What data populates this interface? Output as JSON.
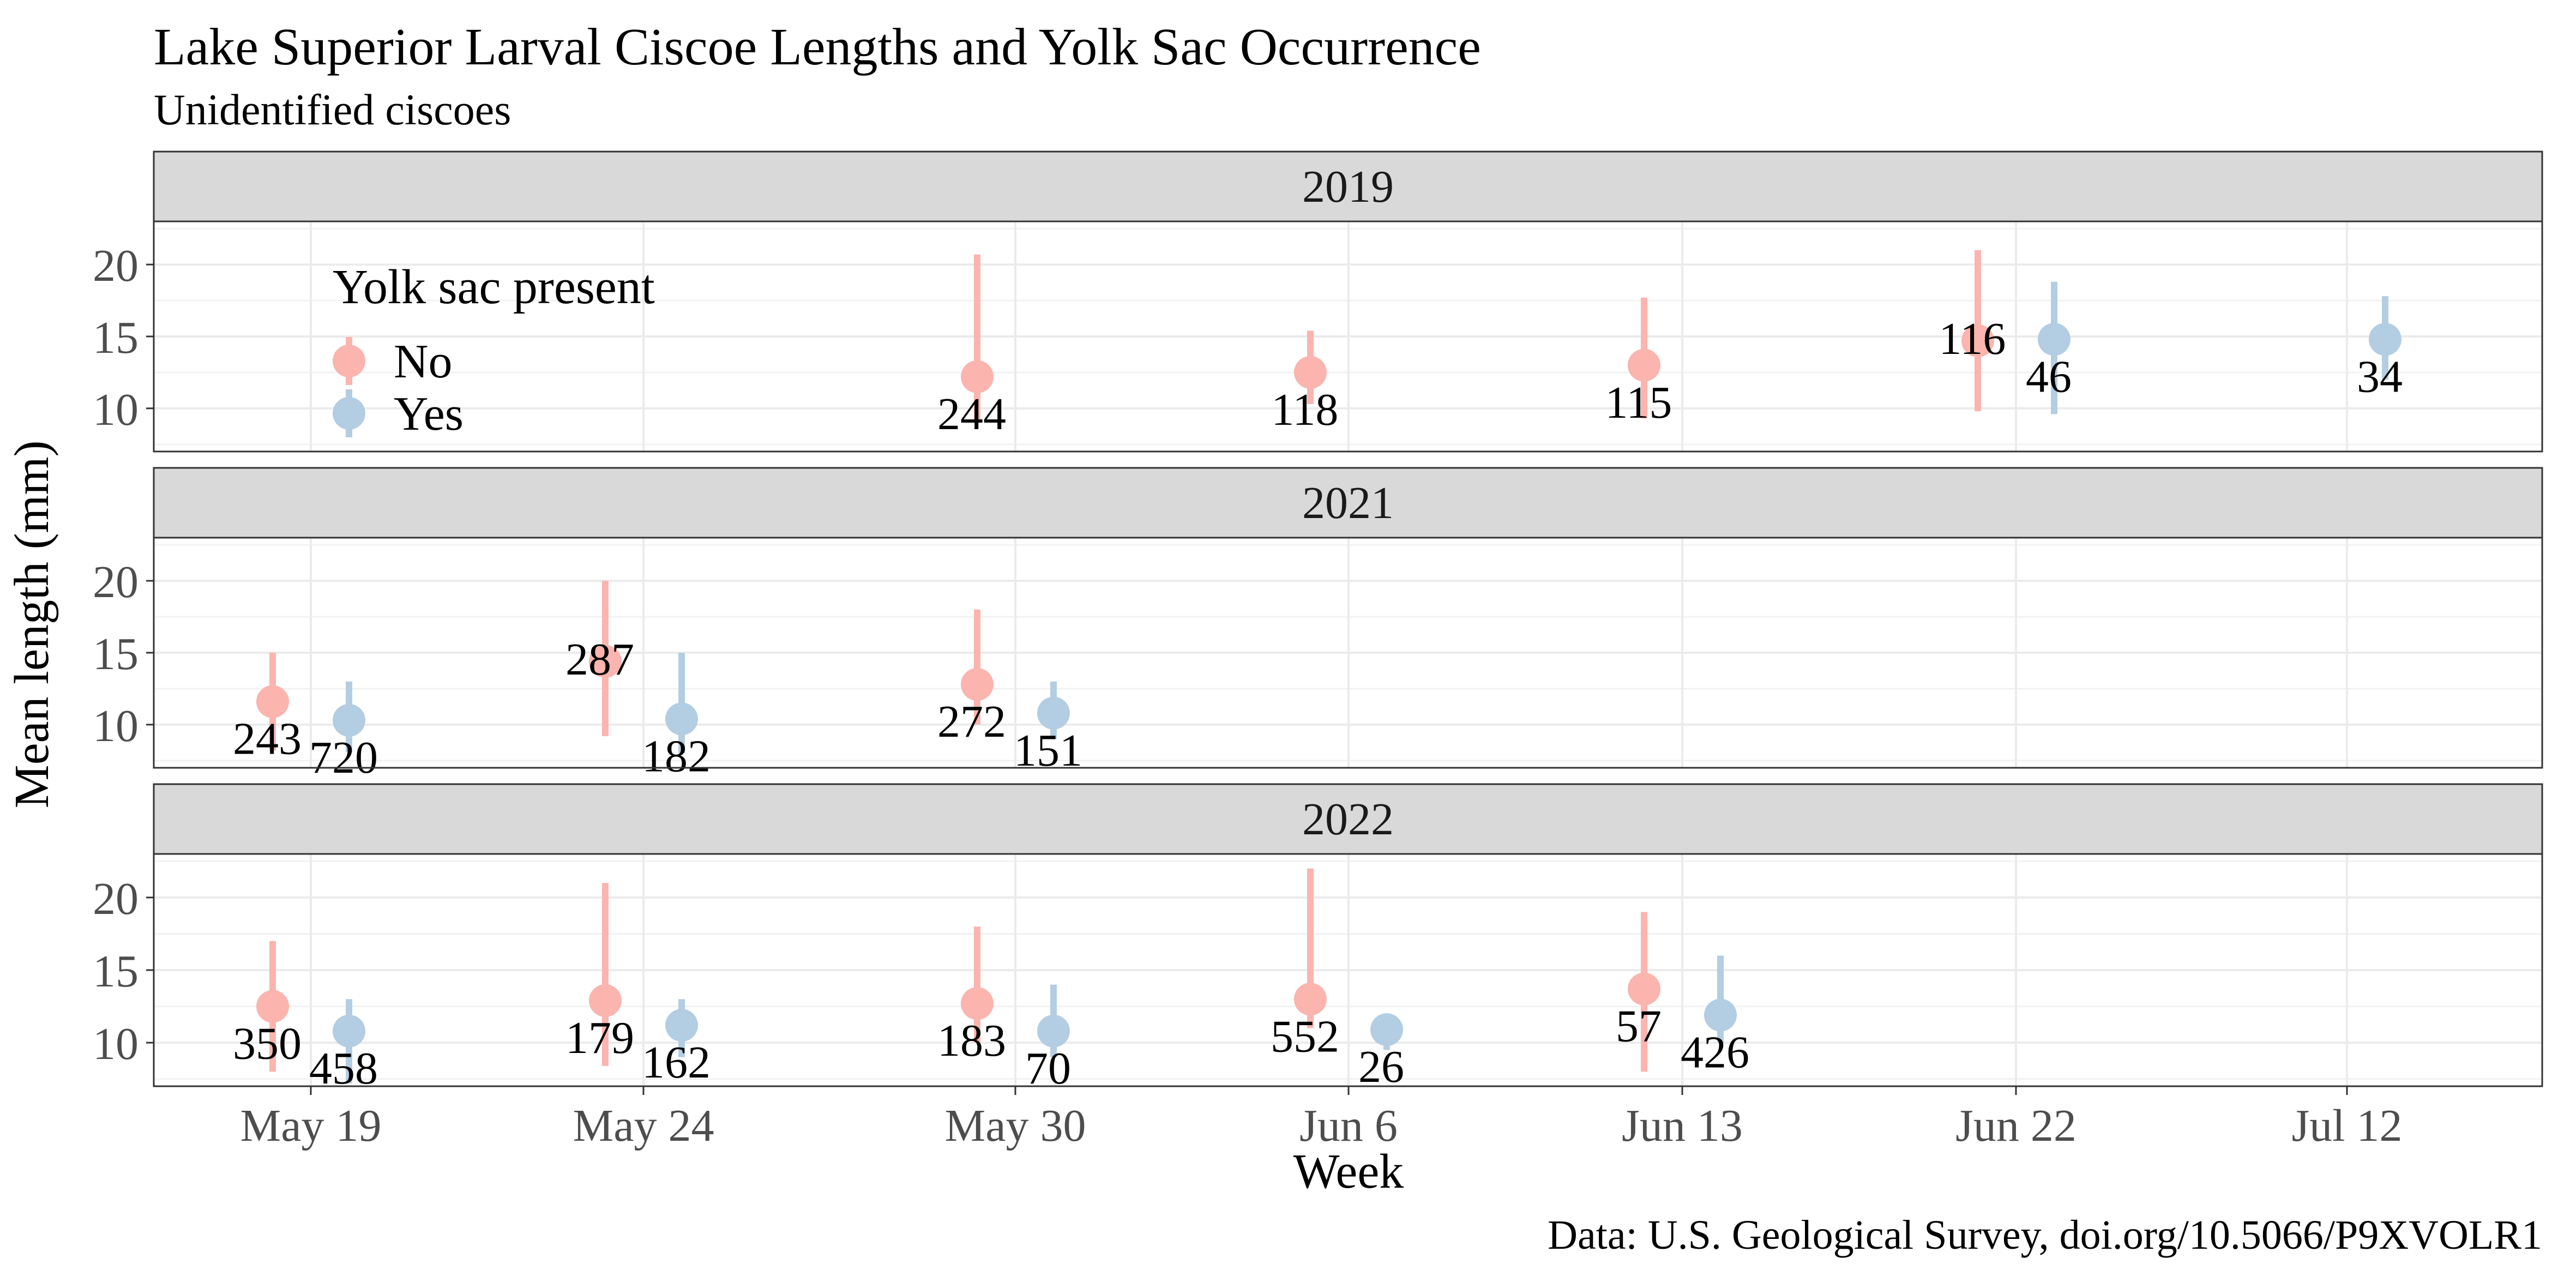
{
  "title": "Lake Superior Larval Ciscoe Lengths and Yolk Sac Occurrence",
  "subtitle": "Unidentified ciscoes",
  "caption": "Data: U.S. Geological Survey, doi.org/10.5066/P9XVOLR1",
  "colors": {
    "No": "#FBB4AE",
    "Yes": "#B3CDE3"
  },
  "chart_data": {
    "type": "scatter",
    "xlabel": "Week",
    "ylabel": "Mean length (mm)",
    "x_categories": [
      "May 19",
      "May 24",
      "May 30",
      "Jun 6",
      "Jun 13",
      "Jun 22",
      "Jul 12"
    ],
    "y_ticks": [
      10,
      15,
      20
    ],
    "ylim": [
      7,
      23
    ],
    "grid": true,
    "legend": {
      "title": "Yolk sac present",
      "placement": "top-left inside 2019 panel",
      "entries": [
        "No",
        "Yes"
      ]
    },
    "panels": [
      {
        "label": "2019",
        "points": [
          {
            "week": "May 30",
            "yolk": "No",
            "mean": 12.2,
            "low": 9.0,
            "high": 20.7,
            "n": "244"
          },
          {
            "week": "Jun 6",
            "yolk": "No",
            "mean": 12.5,
            "low": 10.3,
            "high": 15.4,
            "n": "118"
          },
          {
            "week": "Jun 13",
            "yolk": "No",
            "mean": 13.0,
            "low": 9.3,
            "high": 17.7,
            "n": "115"
          },
          {
            "week": "Jun 22",
            "yolk": "No",
            "mean": 14.7,
            "low": 9.8,
            "high": 21.0,
            "n": "116"
          },
          {
            "week": "Jun 22",
            "yolk": "Yes",
            "mean": 14.8,
            "low": 9.6,
            "high": 18.8,
            "n": "46"
          },
          {
            "week": "Jul 12",
            "yolk": "Yes",
            "mean": 14.8,
            "low": 12.0,
            "high": 17.8,
            "n": "34"
          }
        ]
      },
      {
        "label": "2021",
        "points": [
          {
            "week": "May 19",
            "yolk": "No",
            "mean": 11.6,
            "low": 8.2,
            "high": 15.0,
            "n": "243"
          },
          {
            "week": "May 19",
            "yolk": "Yes",
            "mean": 10.3,
            "low": 8.1,
            "high": 13.0,
            "n": "720"
          },
          {
            "week": "May 24",
            "yolk": "No",
            "mean": 14.4,
            "low": 9.2,
            "high": 20.0,
            "n": "287"
          },
          {
            "week": "May 24",
            "yolk": "Yes",
            "mean": 10.4,
            "low": 8.0,
            "high": 15.0,
            "n": "182"
          },
          {
            "week": "May 30",
            "yolk": "No",
            "mean": 12.8,
            "low": 10.0,
            "high": 18.0,
            "n": "272"
          },
          {
            "week": "May 30",
            "yolk": "Yes",
            "mean": 10.8,
            "low": 9.0,
            "high": 13.0,
            "n": "151"
          }
        ]
      },
      {
        "label": "2022",
        "points": [
          {
            "week": "May 19",
            "yolk": "No",
            "mean": 12.5,
            "low": 8.0,
            "high": 17.0,
            "n": "350"
          },
          {
            "week": "May 19",
            "yolk": "Yes",
            "mean": 10.8,
            "low": 7.2,
            "high": 13.0,
            "n": "458"
          },
          {
            "week": "May 24",
            "yolk": "No",
            "mean": 12.9,
            "low": 8.4,
            "high": 21.0,
            "n": "179"
          },
          {
            "week": "May 24",
            "yolk": "Yes",
            "mean": 11.2,
            "low": 9.0,
            "high": 13.0,
            "n": "162"
          },
          {
            "week": "May 30",
            "yolk": "No",
            "mean": 12.7,
            "low": 10.0,
            "high": 18.0,
            "n": "183"
          },
          {
            "week": "May 30",
            "yolk": "Yes",
            "mean": 10.8,
            "low": 9.0,
            "high": 14.0,
            "n": "70"
          },
          {
            "week": "Jun 6",
            "yolk": "No",
            "mean": 13.0,
            "low": 11.0,
            "high": 22.0,
            "n": "552"
          },
          {
            "week": "Jun 6",
            "yolk": "Yes",
            "mean": 10.9,
            "low": 9.5,
            "high": 12.0,
            "n": "26"
          },
          {
            "week": "Jun 13",
            "yolk": "No",
            "mean": 13.7,
            "low": 8.0,
            "high": 19.0,
            "n": "57"
          },
          {
            "week": "Jun 13",
            "yolk": "Yes",
            "mean": 11.9,
            "low": 10.0,
            "high": 16.0,
            "n": "426"
          }
        ]
      }
    ]
  }
}
